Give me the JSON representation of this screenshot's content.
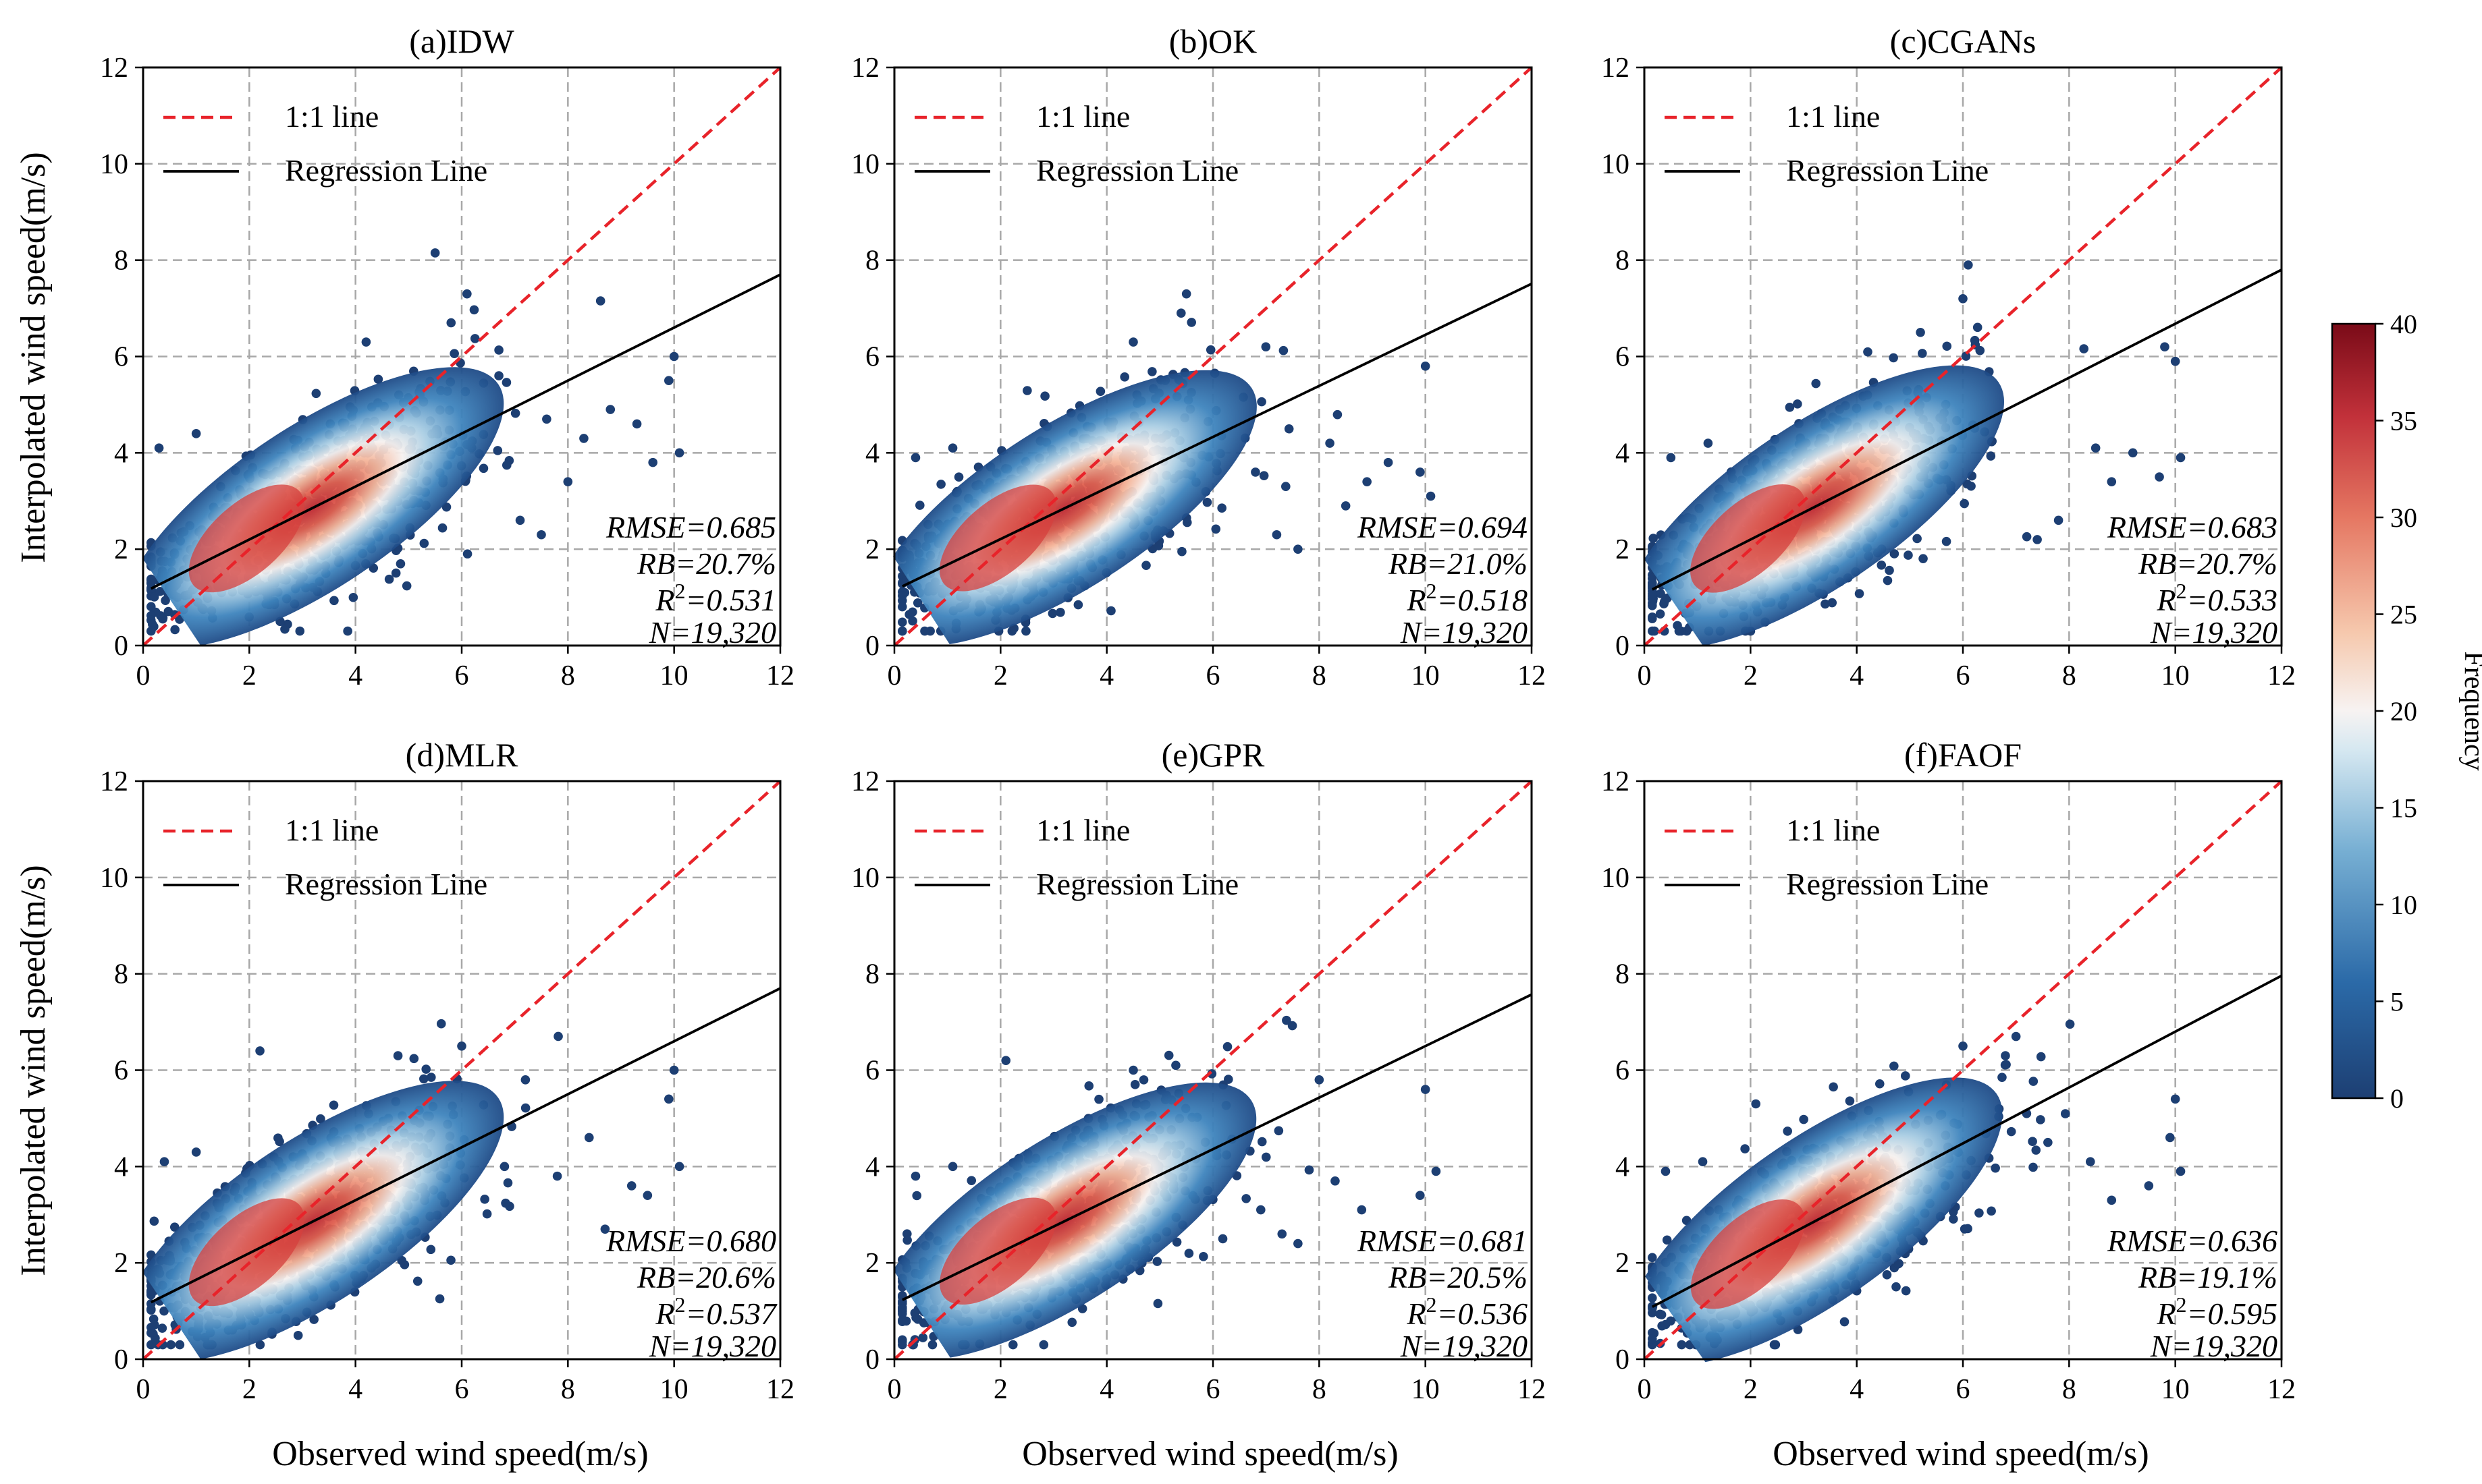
{
  "figure": {
    "ylabel": "Interpolated wind speed(m/s)",
    "xlabel": "Observed wind speed(m/s)",
    "legend": {
      "one_to_one": "1:1 line",
      "regression": "Regression Line"
    },
    "colorbar": {
      "label": "Frequency",
      "min": 0,
      "max": 40,
      "ticks": [
        "0",
        "5",
        "10",
        "15",
        "20",
        "25",
        "30",
        "35",
        "40"
      ]
    },
    "axis_ticks": [
      "0",
      "2",
      "4",
      "6",
      "8",
      "10",
      "12"
    ],
    "colors": {
      "identity": "#e8232a",
      "regression": "#000000",
      "grid": "#a8a8a8",
      "low": "#1d3f73",
      "mid": "#f7f3f2",
      "high": "#7a0b18"
    }
  },
  "chart_data": [
    {
      "type": "scatter",
      "title": "(a)IDW",
      "xlim": [
        0,
        12
      ],
      "ylim": [
        0,
        12
      ],
      "grid": true,
      "legend_position": "top-left",
      "regression": {
        "slope": 0.55,
        "intercept": 1.1
      },
      "stats": {
        "rmse": "RMSE=0.685",
        "rb": "RB=20.7%",
        "r2_prefix": "R",
        "r2_value": "=0.531",
        "n": "N=19,320"
      },
      "outliers": [
        [
          5.5,
          8.15
        ],
        [
          6.1,
          7.3
        ],
        [
          4.2,
          6.3
        ],
        [
          5.8,
          6.7
        ],
        [
          10.0,
          6.0
        ],
        [
          9.9,
          5.5
        ],
        [
          10.1,
          4.0
        ],
        [
          8.8,
          4.9
        ],
        [
          8.3,
          4.3
        ],
        [
          9.3,
          4.6
        ],
        [
          9.6,
          3.8
        ],
        [
          7.5,
          2.3
        ],
        [
          7.1,
          2.6
        ],
        [
          0.3,
          4.1
        ],
        [
          1.0,
          4.4
        ],
        [
          8.0,
          3.4
        ],
        [
          7.6,
          4.7
        ],
        [
          6.7,
          5.6
        ]
      ]
    },
    {
      "type": "scatter",
      "title": "(b)OK",
      "xlim": [
        0,
        12
      ],
      "ylim": [
        0,
        12
      ],
      "grid": true,
      "legend_position": "top-left",
      "regression": {
        "slope": 0.53,
        "intercept": 1.15
      },
      "stats": {
        "rmse": "RMSE=0.694",
        "rb": "RB=21.0%",
        "r2_prefix": "R",
        "r2_value": "=0.518",
        "n": "N=19,320"
      },
      "outliers": [
        [
          5.5,
          7.3
        ],
        [
          5.4,
          6.9
        ],
        [
          4.5,
          6.3
        ],
        [
          10.0,
          5.8
        ],
        [
          9.9,
          3.6
        ],
        [
          10.1,
          3.1
        ],
        [
          8.9,
          3.4
        ],
        [
          8.5,
          2.9
        ],
        [
          7.6,
          2.0
        ],
        [
          7.2,
          2.3
        ],
        [
          0.4,
          3.9
        ],
        [
          1.1,
          4.1
        ],
        [
          8.2,
          4.2
        ],
        [
          9.3,
          3.8
        ],
        [
          6.8,
          3.6
        ]
      ]
    },
    {
      "type": "scatter",
      "title": "(c)CGANs",
      "xlim": [
        0,
        12
      ],
      "ylim": [
        0,
        12
      ],
      "grid": true,
      "legend_position": "top-left",
      "regression": {
        "slope": 0.56,
        "intercept": 1.08
      },
      "stats": {
        "rmse": "RMSE=0.683",
        "rb": "RB=20.7%",
        "r2_prefix": "R",
        "r2_value": "=0.533",
        "n": "N=19,320"
      },
      "outliers": [
        [
          6.1,
          7.9
        ],
        [
          6.0,
          7.2
        ],
        [
          5.2,
          6.5
        ],
        [
          10.0,
          5.9
        ],
        [
          9.8,
          6.2
        ],
        [
          9.7,
          3.5
        ],
        [
          10.1,
          3.9
        ],
        [
          8.8,
          3.4
        ],
        [
          8.5,
          4.1
        ],
        [
          7.8,
          2.6
        ],
        [
          7.4,
          2.2
        ],
        [
          0.5,
          3.9
        ],
        [
          1.2,
          4.2
        ],
        [
          9.2,
          4.0
        ]
      ]
    },
    {
      "type": "scatter",
      "title": "(d)MLR",
      "xlim": [
        0,
        12
      ],
      "ylim": [
        0,
        12
      ],
      "grid": true,
      "legend_position": "top-left",
      "regression": {
        "slope": 0.55,
        "intercept": 1.1
      },
      "stats": {
        "rmse": "RMSE=0.680",
        "rb": "RB=20.6%",
        "r2_prefix": "R",
        "r2_value": "=0.537",
        "n": "N=19,320"
      },
      "outliers": [
        [
          2.2,
          6.4
        ],
        [
          6.0,
          6.5
        ],
        [
          4.8,
          6.3
        ],
        [
          10.0,
          6.0
        ],
        [
          9.9,
          5.4
        ],
        [
          10.1,
          4.0
        ],
        [
          9.5,
          3.4
        ],
        [
          9.2,
          3.6
        ],
        [
          8.7,
          2.7
        ],
        [
          7.8,
          3.8
        ],
        [
          0.4,
          4.1
        ],
        [
          1.0,
          4.3
        ],
        [
          8.4,
          4.6
        ],
        [
          7.2,
          5.8
        ]
      ]
    },
    {
      "type": "scatter",
      "title": "(e)GPR",
      "xlim": [
        0,
        12
      ],
      "ylim": [
        0,
        12
      ],
      "grid": true,
      "legend_position": "top-left",
      "regression": {
        "slope": 0.535,
        "intercept": 1.15
      },
      "stats": {
        "rmse": "RMSE=0.681",
        "rb": "RB=20.5%",
        "r2_prefix": "R",
        "r2_value": "=0.536",
        "n": "N=19,320"
      },
      "outliers": [
        [
          2.1,
          6.2
        ],
        [
          5.3,
          6.1
        ],
        [
          4.5,
          6.0
        ],
        [
          10.0,
          5.6
        ],
        [
          9.9,
          3.4
        ],
        [
          10.2,
          3.9
        ],
        [
          8.8,
          3.1
        ],
        [
          8.3,
          3.7
        ],
        [
          7.6,
          2.4
        ],
        [
          7.3,
          2.6
        ],
        [
          0.4,
          3.8
        ],
        [
          1.1,
          4.0
        ],
        [
          8.0,
          5.8
        ],
        [
          6.9,
          3.1
        ]
      ]
    },
    {
      "type": "scatter",
      "title": "(f)FAOF",
      "xlim": [
        0,
        12
      ],
      "ylim": [
        0,
        12
      ],
      "grid": true,
      "legend_position": "top-left",
      "regression": {
        "slope": 0.58,
        "intercept": 1.0
      },
      "stats": {
        "rmse": "RMSE=0.636",
        "rb": "RB=19.1%",
        "r2_prefix": "R",
        "r2_value": "=0.595",
        "n": "N=19,320"
      },
      "outliers": [
        [
          2.1,
          5.3
        ],
        [
          6.0,
          6.5
        ],
        [
          7.0,
          6.7
        ],
        [
          6.8,
          6.3
        ],
        [
          10.0,
          5.4
        ],
        [
          9.9,
          4.6
        ],
        [
          10.1,
          3.9
        ],
        [
          9.5,
          3.6
        ],
        [
          8.8,
          3.3
        ],
        [
          8.4,
          4.1
        ],
        [
          0.4,
          3.9
        ],
        [
          1.1,
          4.1
        ],
        [
          7.6,
          4.5
        ],
        [
          7.2,
          5.1
        ]
      ]
    }
  ]
}
